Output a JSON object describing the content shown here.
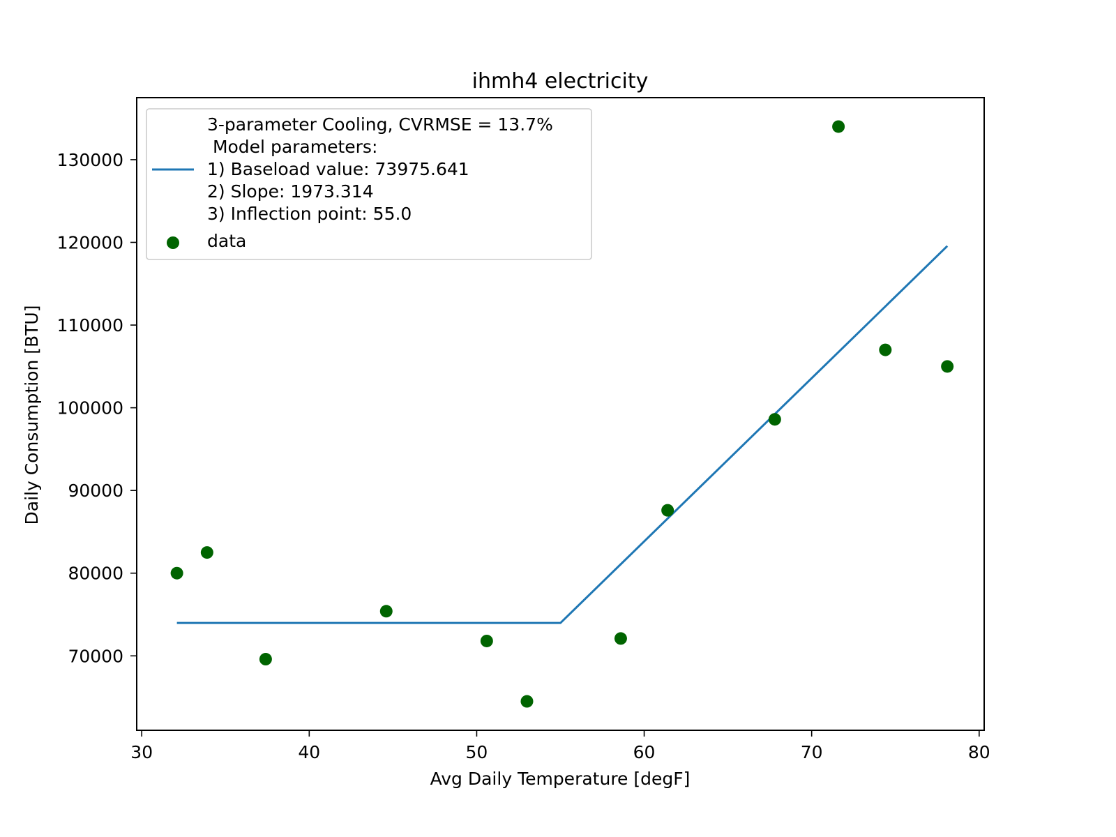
{
  "chart_data": {
    "type": "scatter",
    "title": "ihmh4 electricity",
    "xlabel": "Avg Daily Temperature [degF]",
    "ylabel": "Daily Consumption [BTU]",
    "xlim": [
      29.7,
      80.3
    ],
    "ylim": [
      61000,
      137500
    ],
    "xticks": [
      30,
      40,
      50,
      60,
      70,
      80
    ],
    "yticks": [
      70000,
      80000,
      90000,
      100000,
      110000,
      120000,
      130000
    ],
    "grid": false,
    "legend_position": "upper-left",
    "series": [
      {
        "name": "3-parameter Cooling, CVRMSE = 13.7%\n Model parameters:\n1) Baseload value: 73975.641\n2) Slope: 1973.314\n3) Inflection point: 55.0",
        "kind": "line",
        "color": "#1f77b4",
        "x": [
          32.1,
          55.0,
          78.1
        ],
        "y": [
          73975.641,
          73975.641,
          119558.2
        ]
      },
      {
        "name": "data",
        "kind": "scatter",
        "color": "#006400",
        "x": [
          32.1,
          33.9,
          37.4,
          44.6,
          50.6,
          53.0,
          58.6,
          61.4,
          67.8,
          71.6,
          74.4,
          78.1
        ],
        "y": [
          80000,
          82500,
          69600,
          75400,
          71800,
          64500,
          72100,
          87600,
          98600,
          134000,
          107000,
          105000
        ]
      }
    ]
  }
}
